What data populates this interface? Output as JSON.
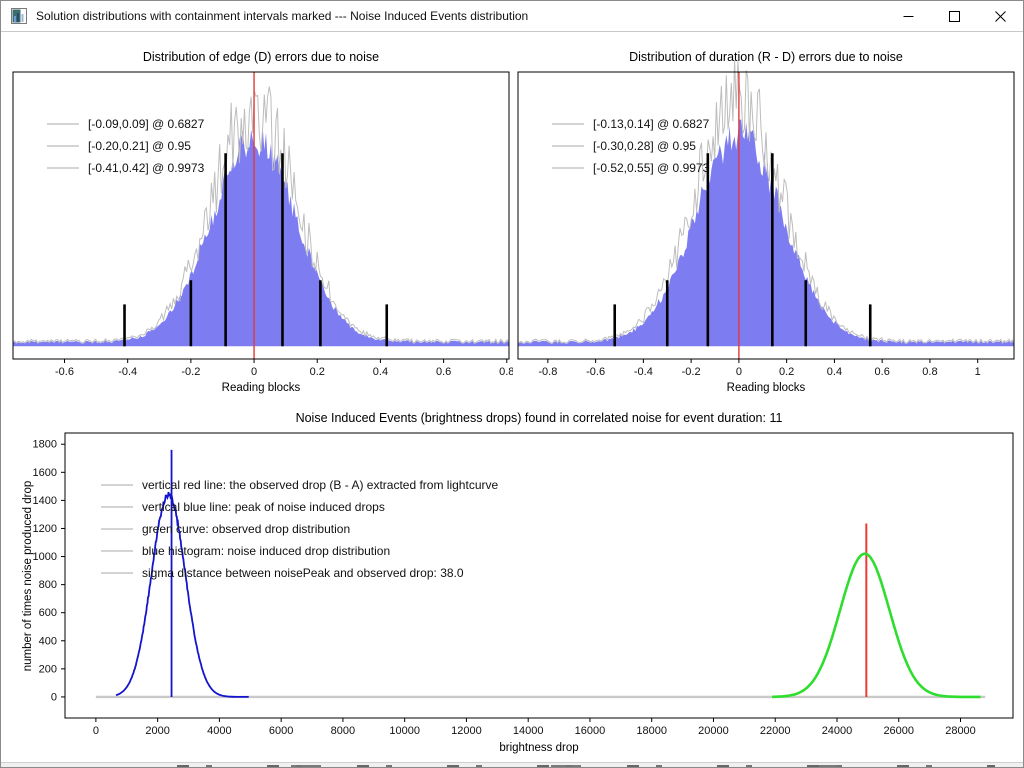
{
  "window": {
    "title": "Solution distributions with containment intervals marked --- Noise Induced Events distribution",
    "icons": {
      "app_icon": "matplotlib-figure-icon",
      "minimize": "—",
      "maximize": "□",
      "close": "✕"
    }
  },
  "colors": {
    "hist_fill": "#7d7df1",
    "hist_outline": "#bdbdbd",
    "center_line_red": "#e23939",
    "marker_black": "#000000",
    "noise_blue": "#1414cc",
    "observed_green": "#2edd2e",
    "observed_red": "#ee3b31",
    "baseline_gray": "#c9c9c9",
    "legend_swatch_gray": "#d4d4d4"
  },
  "chart_data": [
    {
      "id": "edge",
      "type": "area",
      "title": "Distribution of edge (D) errors due to noise",
      "xlabel": "Reading blocks",
      "xlim": [
        -0.763,
        0.807
      ],
      "xticks": [
        -0.6,
        -0.4,
        -0.2,
        0,
        0.2,
        0.4,
        0.6,
        0.8
      ],
      "grid": false,
      "legend_position": "upper left",
      "legend": [
        "[-0.09,0.09] @ 0.6827",
        "[-0.20,0.21] @ 0.95",
        "[-0.41,0.42] @ 0.9973"
      ],
      "intervals": [
        {
          "range": [
            -0.09,
            0.09
          ],
          "containment": 0.6827
        },
        {
          "range": [
            -0.2,
            0.21
          ],
          "containment": 0.95
        },
        {
          "range": [
            -0.41,
            0.42
          ],
          "containment": 0.9973
        }
      ],
      "hist": {
        "mean": 0,
        "sigma": 0.135,
        "gray_peak": 0.93,
        "blue_peak": 0.82,
        "seed": 11
      },
      "center_line_x": 0,
      "interval_markers": [
        {
          "x": -0.41,
          "h": 0.165
        },
        {
          "x": -0.2,
          "h": 0.26
        },
        {
          "x": -0.09,
          "h": 0.76
        },
        {
          "x": 0.09,
          "h": 0.76
        },
        {
          "x": 0.21,
          "h": 0.26
        },
        {
          "x": 0.42,
          "h": 0.165
        }
      ]
    },
    {
      "id": "duration",
      "type": "area",
      "title": "Distribution of duration (R - D) errors due to noise",
      "xlabel": "Reading blocks",
      "xlim": [
        -0.925,
        1.152
      ],
      "xticks": [
        -0.8,
        -0.6,
        -0.4,
        -0.2,
        0,
        0.2,
        0.4,
        0.6,
        0.8,
        1
      ],
      "grid": false,
      "legend_position": "upper left",
      "legend": [
        "[-0.13,0.14] @ 0.6827",
        "[-0.30,0.28] @ 0.95",
        "[-0.52,0.55] @ 0.9973"
      ],
      "intervals": [
        {
          "range": [
            -0.13,
            0.14
          ],
          "containment": 0.6827
        },
        {
          "range": [
            -0.3,
            0.28
          ],
          "containment": 0.95
        },
        {
          "range": [
            -0.52,
            0.55
          ],
          "containment": 0.9973
        }
      ],
      "hist": {
        "mean": 0,
        "sigma": 0.185,
        "gray_peak": 0.95,
        "blue_peak": 0.83,
        "seed": 23
      },
      "center_line_x": 0,
      "interval_markers": [
        {
          "x": -0.52,
          "h": 0.165
        },
        {
          "x": -0.3,
          "h": 0.26
        },
        {
          "x": -0.13,
          "h": 0.76
        },
        {
          "x": 0.14,
          "h": 0.76
        },
        {
          "x": 0.28,
          "h": 0.26
        },
        {
          "x": 0.55,
          "h": 0.165
        }
      ]
    },
    {
      "id": "noise",
      "type": "line",
      "title": "Noise Induced Events (brightness drops) found in correlated noise for event duration: 11",
      "xlabel": "brightness drop",
      "ylabel": "number of times noise produced drop",
      "event_duration": 11,
      "sigma_distance": 38.0,
      "xlim": [
        -1000,
        29700
      ],
      "ylim": [
        -150,
        1880
      ],
      "xticks": [
        0,
        2000,
        4000,
        6000,
        8000,
        10000,
        12000,
        14000,
        16000,
        18000,
        20000,
        22000,
        24000,
        26000,
        28000
      ],
      "yticks": [
        0,
        200,
        400,
        600,
        800,
        1000,
        1200,
        1400,
        1600,
        1800
      ],
      "grid": false,
      "legend_position": "upper left",
      "legend": [
        "vertical red line: the observed drop (B - A) extracted from lightcurve",
        "vertical blue line: peak of noise induced drops",
        "green curve: observed drop distribution",
        "blue histogram: noise induced drop distribution",
        "sigma distance between noisePeak and observed drop: 38.0"
      ],
      "noise_histogram": {
        "mean": 2350,
        "sigma": 550,
        "peak": 1440,
        "draw_range": [
          650,
          4950
        ],
        "seed": 5
      },
      "noise_peak_line": {
        "x": 2450,
        "top": 1760
      },
      "observed_curve": {
        "mean": 24900,
        "sigma": 800,
        "peak": 1020,
        "draw_range": [
          21900,
          28650
        ]
      },
      "observed_drop_line": {
        "x": 24950,
        "top": 1235
      },
      "baseline": {
        "x0": 0,
        "x1": 28800,
        "y": 0
      }
    }
  ]
}
